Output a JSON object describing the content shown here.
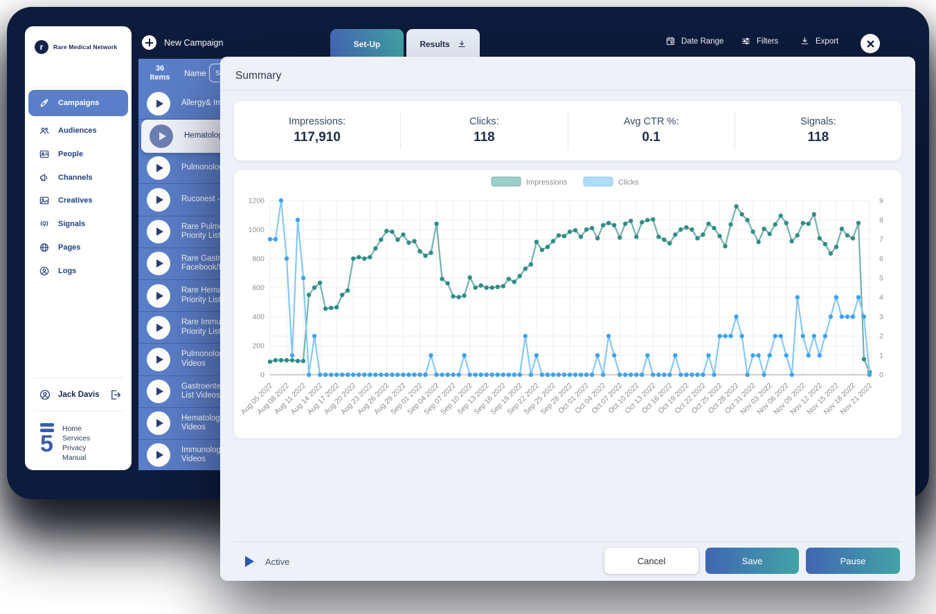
{
  "colors": {
    "frame_navy": "#0d1b3c",
    "list_blue": "#5b7ec8",
    "active_nav_blue": "#5b7ec8",
    "gradient_start": "#4066b3",
    "gradient_end": "#42a3a6",
    "impressions_teal": "#2f8d85",
    "clicks_blue": "#3ea2ed"
  },
  "topbar": {
    "new_campaign_label": "New Campaign",
    "tabs": [
      {
        "label": "Set-Up"
      },
      {
        "label": "Results"
      }
    ],
    "date_range_label": "Date Range",
    "filters_label": "Filters",
    "export_label": "Export"
  },
  "sidebar": {
    "brand": "Rare Medical Network",
    "brand_mark_text": "r",
    "items": [
      {
        "label": "Campaigns"
      },
      {
        "label": "Audiences"
      },
      {
        "label": "People"
      },
      {
        "label": "Channels"
      },
      {
        "label": "Creatives"
      },
      {
        "label": "Signals"
      },
      {
        "label": "Pages"
      },
      {
        "label": "Logs"
      }
    ],
    "user_name": "Jack Davis",
    "footer_logo_text": "5",
    "footer_links": [
      "Home",
      "Services",
      "Privacy",
      "Manual"
    ]
  },
  "list": {
    "count": "36",
    "count_label": "Items",
    "name_header": "Name",
    "search_button_label": "Se",
    "items": [
      {
        "line1": "Allergy& Imm",
        "line2": "",
        "selected": false
      },
      {
        "line1": "Hematology",
        "line2": "",
        "selected": true
      },
      {
        "line1": "Pulmonolog",
        "line2": "",
        "selected": false
      },
      {
        "line1": "Ruconest - H",
        "line2": "",
        "selected": false
      },
      {
        "line1": "Rare Pulmon",
        "line2": "Priority List",
        "selected": false
      },
      {
        "line1": "Rare Gastro",
        "line2": "Facebook/In",
        "selected": false
      },
      {
        "line1": "Rare Hemat",
        "line2": "Priority List",
        "selected": false
      },
      {
        "line1": "Rare Immun",
        "line2": "Priority List",
        "selected": false
      },
      {
        "line1": "Pulmonolog",
        "line2": "Videos",
        "selected": false
      },
      {
        "line1": "Gastroenter",
        "line2": "List Videos",
        "selected": false
      },
      {
        "line1": "Hematology",
        "line2": "Videos",
        "selected": false
      },
      {
        "line1": "Immunology",
        "line2": "Videos",
        "selected": false
      }
    ]
  },
  "modal": {
    "title": "Summary",
    "stats": [
      {
        "label": "Impressions:",
        "value": "117,910"
      },
      {
        "label": "Clicks:",
        "value": "118"
      },
      {
        "label": "Avg CTR %:",
        "value": "0.1"
      },
      {
        "label": "Signals:",
        "value": "118"
      }
    ],
    "status_label": "Active",
    "buttons": {
      "cancel": "Cancel",
      "save": "Save",
      "pause": "Pause"
    }
  },
  "chart_data": {
    "type": "line",
    "title": "",
    "legend_position": "top-center",
    "grid": true,
    "points_per_label": 3,
    "categories": [
      "Aug 05 2022",
      "Aug 08 2022",
      "Aug 11 2022",
      "Aug 14 2022",
      "Aug 17 2022",
      "Aug 20 2022",
      "Aug 23 2022",
      "Aug 26 2022",
      "Aug 29 2022",
      "Sep 01 2022",
      "Sep 04 2022",
      "Sep 07 2022",
      "Sep 10 2022",
      "Sep 13 2022",
      "Sep 16 2022",
      "Sep 19 2022",
      "Sep 22 2022",
      "Sep 25 2022",
      "Sep 28 2022",
      "Oct 01 2022",
      "Oct 04 2022",
      "Oct 07 2022",
      "Oct 10 2022",
      "Oct 13 2022",
      "Oct 16 2022",
      "Oct 19 2022",
      "Oct 22 2022",
      "Oct 25 2022",
      "Oct 28 2022",
      "Oct 31 2022",
      "Nov 03 2022",
      "Nov 06 2022",
      "Nov 09 2022",
      "Nov 12 2022",
      "Nov 15 2022",
      "Nov 18 2022",
      "Nov 21 2022"
    ],
    "left_axis": {
      "min": 0,
      "max": 1200,
      "step": 200
    },
    "right_axis": {
      "min": 0,
      "max": 9,
      "step": 1
    },
    "series": [
      {
        "name": "Impressions",
        "axis": "left",
        "line_color": "#74b1aa",
        "dot_color": "#2f8d85",
        "legend_fill": "#9dd0c9",
        "values": [
          90,
          100,
          100,
          100,
          100,
          95,
          95,
          550,
          600,
          633,
          455,
          460,
          465,
          550,
          580,
          800,
          810,
          800,
          810,
          870,
          930,
          990,
          985,
          930,
          965,
          910,
          920,
          850,
          820,
          840,
          1040,
          660,
          630,
          540,
          535,
          545,
          670,
          600,
          615,
          600,
          600,
          605,
          610,
          660,
          640,
          680,
          730,
          760,
          915,
          860,
          880,
          920,
          960,
          955,
          985,
          995,
          950,
          1000,
          1010,
          940,
          1030,
          1045,
          1030,
          945,
          1040,
          1060,
          950,
          1050,
          1065,
          1070,
          950,
          930,
          905,
          965,
          1000,
          1015,
          1000,
          940,
          965,
          1040,
          1010,
          955,
          885,
          1035,
          1160,
          1105,
          1065,
          985,
          915,
          1005,
          970,
          1035,
          1095,
          1045,
          920,
          960,
          1045,
          1040,
          1105,
          940,
          900,
          835,
          880,
          1005,
          960,
          940,
          1045,
          107,
          20
        ]
      },
      {
        "name": "Clicks",
        "axis": "right",
        "line_color": "#85c8f4",
        "dot_color": "#3ea2ed",
        "legend_fill": "#b1dcf8",
        "values": [
          7,
          7,
          9,
          6,
          1,
          8,
          5,
          0,
          2,
          0,
          0,
          0,
          0,
          0,
          0,
          0,
          0,
          0,
          0,
          0,
          0,
          0,
          0,
          0,
          0,
          0,
          0,
          0,
          0,
          1,
          0,
          0,
          0,
          0,
          0,
          1,
          0,
          0,
          0,
          0,
          0,
          0,
          0,
          0,
          0,
          0,
          2,
          0,
          1,
          0,
          0,
          0,
          0,
          0,
          0,
          0,
          0,
          0,
          0,
          1,
          0,
          2,
          1,
          0,
          0,
          0,
          0,
          0,
          1,
          0,
          0,
          0,
          0,
          1,
          0,
          0,
          0,
          0,
          0,
          1,
          0,
          2,
          2,
          2,
          3,
          2,
          0,
          1,
          1,
          0,
          1,
          2,
          2,
          1,
          0,
          4,
          2,
          1,
          2,
          1,
          2,
          3,
          4,
          3,
          3,
          3,
          4,
          3,
          0
        ]
      }
    ]
  }
}
